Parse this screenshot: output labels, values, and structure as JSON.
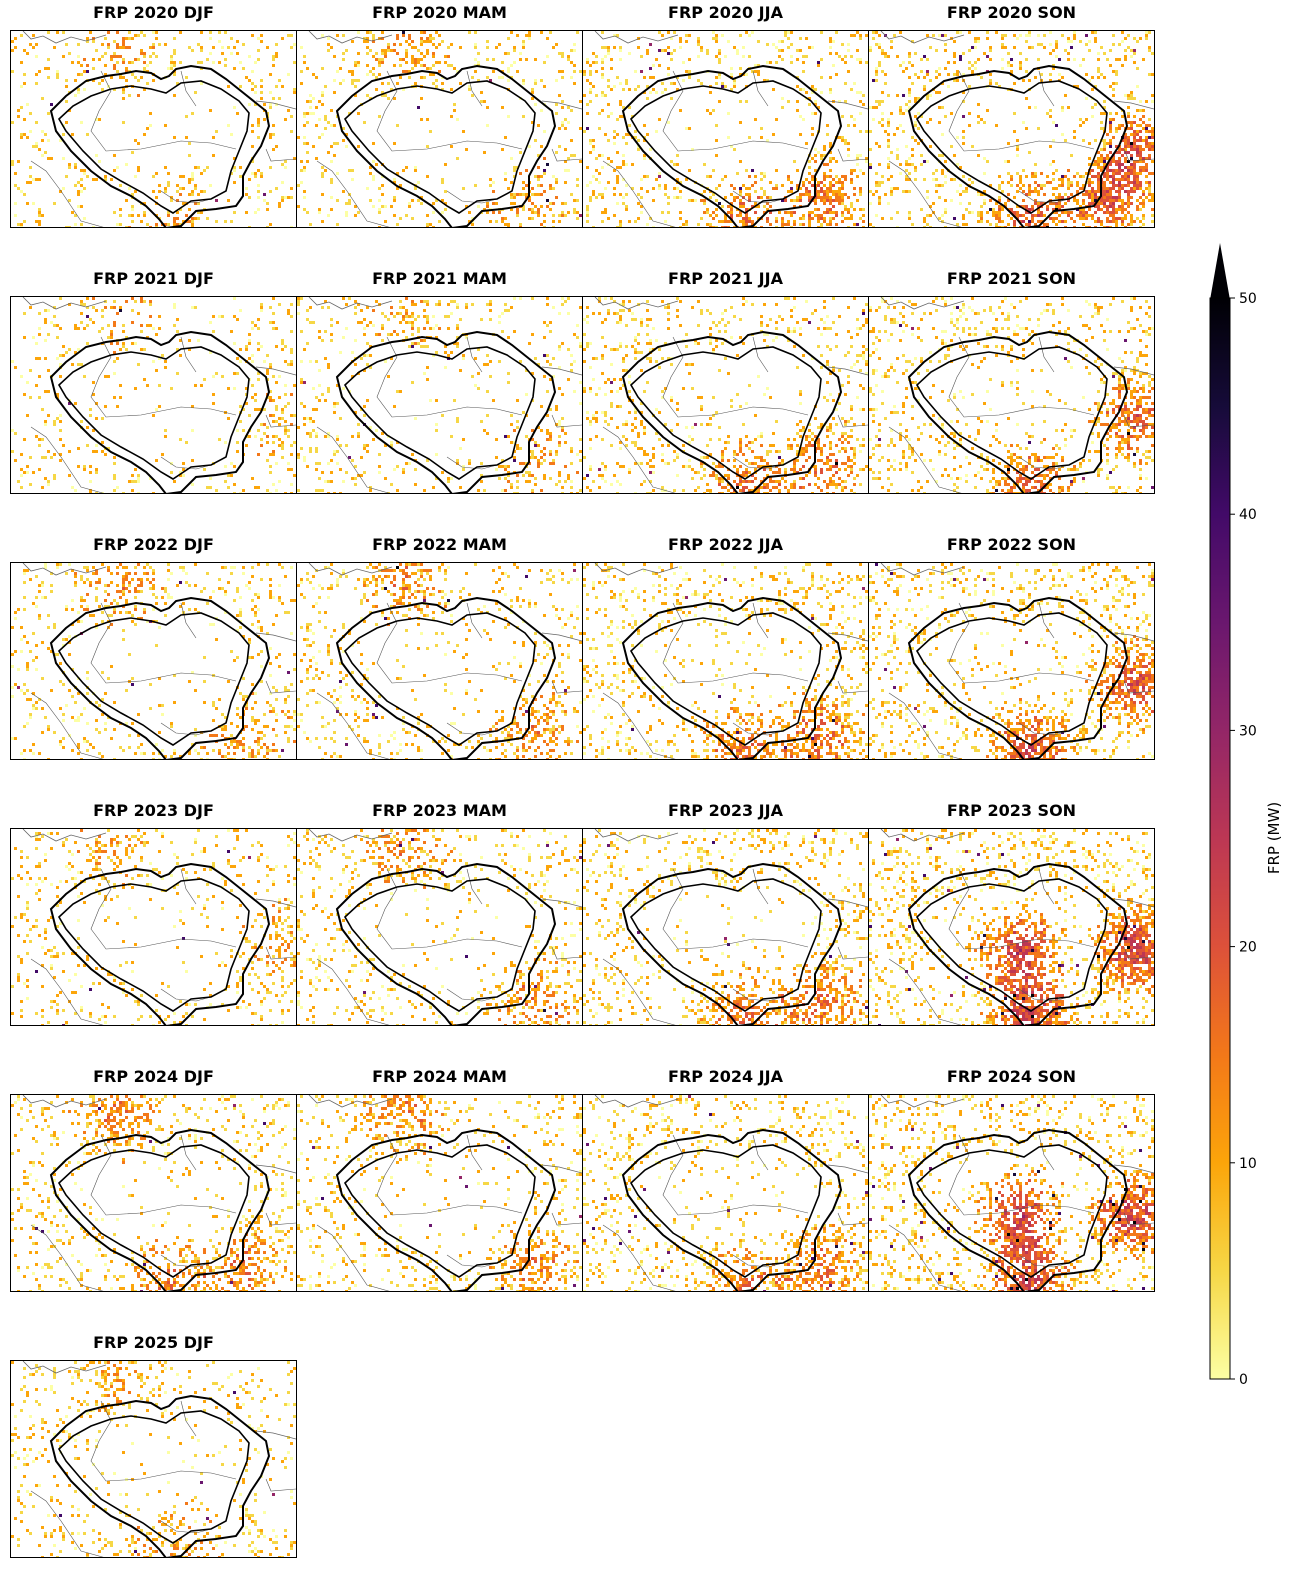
{
  "figure": {
    "variable": "FRP",
    "panels": [
      {
        "title": "FRP 2020 DJF",
        "year": 2020,
        "season": "DJF",
        "fire_activity": 0.25,
        "hotspots": [
          "north",
          "south"
        ]
      },
      {
        "title": "FRP 2020 MAM",
        "year": 2020,
        "season": "MAM",
        "fire_activity": 0.3,
        "hotspots": [
          "north",
          "southeast"
        ]
      },
      {
        "title": "FRP 2020 JJA",
        "year": 2020,
        "season": "JJA",
        "fire_activity": 0.55,
        "hotspots": [
          "south",
          "southeast"
        ]
      },
      {
        "title": "FRP 2020 SON",
        "year": 2020,
        "season": "SON",
        "fire_activity": 0.7,
        "hotspots": [
          "south",
          "east",
          "southeast"
        ]
      },
      {
        "title": "FRP 2021 DJF",
        "year": 2021,
        "season": "DJF",
        "fire_activity": 0.2,
        "hotspots": [
          "north",
          "east"
        ]
      },
      {
        "title": "FRP 2021 MAM",
        "year": 2021,
        "season": "MAM",
        "fire_activity": 0.25,
        "hotspots": [
          "north",
          "southeast"
        ]
      },
      {
        "title": "FRP 2021 JJA",
        "year": 2021,
        "season": "JJA",
        "fire_activity": 0.55,
        "hotspots": [
          "south",
          "southeast"
        ]
      },
      {
        "title": "FRP 2021 SON",
        "year": 2021,
        "season": "SON",
        "fire_activity": 0.65,
        "hotspots": [
          "south",
          "east"
        ]
      },
      {
        "title": "FRP 2022 DJF",
        "year": 2022,
        "season": "DJF",
        "fire_activity": 0.35,
        "hotspots": [
          "north",
          "southeast"
        ]
      },
      {
        "title": "FRP 2022 MAM",
        "year": 2022,
        "season": "MAM",
        "fire_activity": 0.4,
        "hotspots": [
          "north",
          "southeast"
        ]
      },
      {
        "title": "FRP 2022 JJA",
        "year": 2022,
        "season": "JJA",
        "fire_activity": 0.6,
        "hotspots": [
          "south",
          "southeast"
        ]
      },
      {
        "title": "FRP 2022 SON",
        "year": 2022,
        "season": "SON",
        "fire_activity": 0.75,
        "hotspots": [
          "south",
          "east"
        ]
      },
      {
        "title": "FRP 2023 DJF",
        "year": 2023,
        "season": "DJF",
        "fire_activity": 0.25,
        "hotspots": [
          "north",
          "east"
        ]
      },
      {
        "title": "FRP 2023 MAM",
        "year": 2023,
        "season": "MAM",
        "fire_activity": 0.4,
        "hotspots": [
          "north",
          "southeast"
        ]
      },
      {
        "title": "FRP 2023 JJA",
        "year": 2023,
        "season": "JJA",
        "fire_activity": 0.55,
        "hotspots": [
          "south",
          "southeast"
        ]
      },
      {
        "title": "FRP 2023 SON",
        "year": 2023,
        "season": "SON",
        "fire_activity": 0.9,
        "hotspots": [
          "center",
          "south",
          "east"
        ]
      },
      {
        "title": "FRP 2024 DJF",
        "year": 2024,
        "season": "DJF",
        "fire_activity": 0.45,
        "hotspots": [
          "north",
          "southeast",
          "south"
        ]
      },
      {
        "title": "FRP 2024 MAM",
        "year": 2024,
        "season": "MAM",
        "fire_activity": 0.45,
        "hotspots": [
          "north",
          "southeast"
        ]
      },
      {
        "title": "FRP 2024 JJA",
        "year": 2024,
        "season": "JJA",
        "fire_activity": 0.55,
        "hotspots": [
          "south",
          "southeast"
        ]
      },
      {
        "title": "FRP 2024 SON",
        "year": 2024,
        "season": "SON",
        "fire_activity": 0.9,
        "hotspots": [
          "center",
          "south",
          "east"
        ]
      },
      {
        "title": "FRP 2025 DJF",
        "year": 2025,
        "season": "DJF",
        "fire_activity": 0.3,
        "hotspots": [
          "north",
          "south"
        ]
      }
    ]
  },
  "colorbar": {
    "label": "FRP (MW)",
    "min": 0,
    "max": 50,
    "extend": "max",
    "ticks": [
      0,
      10,
      20,
      30,
      40,
      50
    ],
    "tick_labels": [
      "0",
      "10",
      "20",
      "30",
      "40",
      "50"
    ],
    "colormap": "inferno_r",
    "colors": [
      "#fcffa4",
      "#f6d746",
      "#fca50a",
      "#f37819",
      "#dd513a",
      "#bc3754",
      "#932667",
      "#6a176e",
      "#420a68",
      "#160b39",
      "#000004"
    ]
  }
}
